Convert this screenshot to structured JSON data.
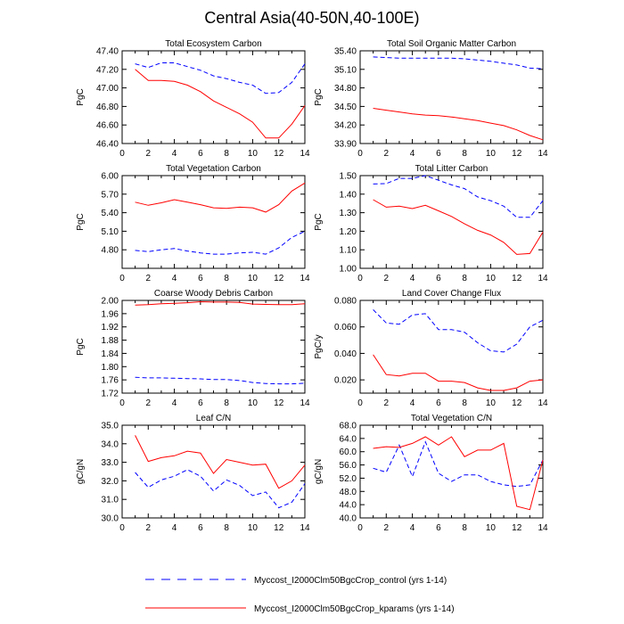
{
  "page_title": "Central Asia(40-50N,40-100E)",
  "colors": {
    "control": "#0000ff",
    "kparams": "#ff0000",
    "axis": "#000000"
  },
  "legend": [
    {
      "label": "Myccost_I2000Clm50BgcCrop_control (yrs 1-14)",
      "color": "#0000ff",
      "dash": "dashed"
    },
    {
      "label": "Myccost_I2000Clm50BgcCrop_kparams (yrs 1-14)",
      "color": "#ff0000",
      "dash": "solid"
    }
  ],
  "chart_data": [
    {
      "type": "line",
      "title": "Total Ecosystem Carbon",
      "ylabel": "PgC",
      "xlim": [
        0,
        14
      ],
      "xticks": [
        "0",
        "2",
        "4",
        "6",
        "8",
        "10",
        "12",
        "14"
      ],
      "ylim": [
        46.4,
        47.4
      ],
      "yticks": [
        "46.40",
        "46.60",
        "46.80",
        "47.00",
        "47.20",
        "47.40"
      ],
      "x": [
        1,
        2,
        3,
        4,
        5,
        6,
        7,
        8,
        9,
        10,
        11,
        12,
        13,
        14
      ],
      "series": [
        {
          "key": "control",
          "values": [
            47.26,
            47.22,
            47.27,
            47.27,
            47.23,
            47.19,
            47.13,
            47.1,
            47.06,
            47.03,
            46.94,
            46.95,
            47.06,
            47.26
          ]
        },
        {
          "key": "kparams",
          "values": [
            47.2,
            47.08,
            47.08,
            47.07,
            47.03,
            46.96,
            46.86,
            46.79,
            46.72,
            46.63,
            46.46,
            46.46,
            46.61,
            46.81
          ]
        }
      ]
    },
    {
      "type": "line",
      "title": "Total Soil Organic Matter Carbon",
      "ylabel": "PgC",
      "xlim": [
        0,
        14
      ],
      "xticks": [
        "0",
        "2",
        "4",
        "6",
        "8",
        "10",
        "12",
        "14"
      ],
      "ylim": [
        33.9,
        35.4
      ],
      "yticks": [
        "33.90",
        "34.20",
        "34.50",
        "34.80",
        "35.10",
        "35.40"
      ],
      "x": [
        1,
        2,
        3,
        4,
        5,
        6,
        7,
        8,
        9,
        10,
        11,
        12,
        13,
        14
      ],
      "series": [
        {
          "key": "control",
          "values": [
            35.3,
            35.29,
            35.28,
            35.28,
            35.28,
            35.28,
            35.28,
            35.27,
            35.25,
            35.23,
            35.2,
            35.17,
            35.12,
            35.11
          ]
        },
        {
          "key": "kparams",
          "values": [
            34.47,
            34.44,
            34.41,
            34.38,
            34.36,
            34.35,
            34.33,
            34.3,
            34.27,
            34.23,
            34.19,
            34.12,
            34.03,
            33.96
          ]
        }
      ]
    },
    {
      "type": "line",
      "title": "Total Vegetation Carbon",
      "ylabel": "PgC",
      "xlim": [
        0,
        14
      ],
      "xticks": [
        "0",
        "2",
        "4",
        "6",
        "8",
        "10",
        "12",
        "14"
      ],
      "ylim": [
        4.5,
        6.0
      ],
      "yticks": [
        "4.80",
        "5.10",
        "5.40",
        "5.70",
        "6.00"
      ],
      "x": [
        1,
        2,
        3,
        4,
        5,
        6,
        7,
        8,
        9,
        10,
        11,
        12,
        13,
        14
      ],
      "series": [
        {
          "key": "control",
          "values": [
            4.79,
            4.77,
            4.8,
            4.82,
            4.78,
            4.75,
            4.73,
            4.73,
            4.75,
            4.76,
            4.73,
            4.83,
            5.0,
            5.1
          ]
        },
        {
          "key": "kparams",
          "values": [
            5.57,
            5.52,
            5.56,
            5.61,
            5.57,
            5.53,
            5.48,
            5.47,
            5.49,
            5.48,
            5.41,
            5.53,
            5.75,
            5.88
          ]
        }
      ]
    },
    {
      "type": "line",
      "title": "Total Litter Carbon",
      "ylabel": "PgC",
      "xlim": [
        0,
        14
      ],
      "xticks": [
        "0",
        "2",
        "4",
        "6",
        "8",
        "10",
        "12",
        "14"
      ],
      "ylim": [
        1.0,
        1.5
      ],
      "yticks": [
        "1.00",
        "1.10",
        "1.20",
        "1.30",
        "1.40",
        "1.50"
      ],
      "x": [
        1,
        2,
        3,
        4,
        5,
        6,
        7,
        8,
        9,
        10,
        11,
        12,
        13,
        14
      ],
      "series": [
        {
          "key": "control",
          "values": [
            1.455,
            1.457,
            1.485,
            1.485,
            1.5,
            1.475,
            1.45,
            1.43,
            1.385,
            1.365,
            1.335,
            1.275,
            1.275,
            1.365
          ]
        },
        {
          "key": "kparams",
          "values": [
            1.37,
            1.33,
            1.335,
            1.322,
            1.34,
            1.31,
            1.28,
            1.24,
            1.205,
            1.18,
            1.14,
            1.075,
            1.08,
            1.195
          ]
        }
      ]
    },
    {
      "type": "line",
      "title": "Coarse Woody Debris Carbon",
      "ylabel": "PgC",
      "xlim": [
        0,
        14
      ],
      "xticks": [
        "0",
        "2",
        "4",
        "6",
        "8",
        "10",
        "12",
        "14"
      ],
      "ylim": [
        1.72,
        2.0
      ],
      "yticks": [
        "1.72",
        "1.76",
        "1.80",
        "1.84",
        "1.88",
        "1.92",
        "1.96",
        "2.00"
      ],
      "x": [
        1,
        2,
        3,
        4,
        5,
        6,
        7,
        8,
        9,
        10,
        11,
        12,
        13,
        14
      ],
      "series": [
        {
          "key": "control",
          "values": [
            1.768,
            1.766,
            1.766,
            1.765,
            1.764,
            1.763,
            1.761,
            1.761,
            1.758,
            1.752,
            1.749,
            1.748,
            1.748,
            1.75
          ]
        },
        {
          "key": "kparams",
          "values": [
            1.986,
            1.987,
            1.99,
            1.991,
            1.993,
            1.996,
            1.995,
            1.995,
            1.994,
            1.989,
            1.988,
            1.987,
            1.987,
            1.99
          ]
        }
      ]
    },
    {
      "type": "line",
      "title": "Land Cover Change Flux",
      "ylabel": "PgC/y",
      "xlim": [
        0,
        14
      ],
      "xticks": [
        "0",
        "2",
        "4",
        "6",
        "8",
        "10",
        "12",
        "14"
      ],
      "ylim": [
        0.01,
        0.08
      ],
      "yticks": [
        "0.020",
        "0.040",
        "0.060",
        "0.080"
      ],
      "x": [
        1,
        2,
        3,
        4,
        5,
        6,
        7,
        8,
        9,
        10,
        11,
        12,
        13,
        14
      ],
      "series": [
        {
          "key": "control",
          "values": [
            0.073,
            0.063,
            0.062,
            0.069,
            0.07,
            0.058,
            0.058,
            0.056,
            0.048,
            0.042,
            0.041,
            0.047,
            0.06,
            0.065
          ]
        },
        {
          "key": "kparams",
          "values": [
            0.039,
            0.024,
            0.023,
            0.025,
            0.025,
            0.019,
            0.019,
            0.018,
            0.014,
            0.012,
            0.012,
            0.014,
            0.019,
            0.02
          ]
        }
      ]
    },
    {
      "type": "line",
      "title": "Leaf C/N",
      "ylabel": "gC/gN",
      "xlim": [
        0,
        14
      ],
      "xticks": [
        "0",
        "2",
        "4",
        "6",
        "8",
        "10",
        "12",
        "14"
      ],
      "ylim": [
        30.0,
        35.0
      ],
      "yticks": [
        "30.0",
        "31.0",
        "32.0",
        "33.0",
        "34.0",
        "35.0"
      ],
      "x": [
        1,
        2,
        3,
        4,
        5,
        6,
        7,
        8,
        9,
        10,
        11,
        12,
        13,
        14
      ],
      "series": [
        {
          "key": "control",
          "values": [
            32.45,
            31.65,
            32.05,
            32.25,
            32.6,
            32.25,
            31.45,
            32.05,
            31.75,
            31.2,
            31.4,
            30.55,
            30.85,
            31.85
          ]
        },
        {
          "key": "kparams",
          "values": [
            34.45,
            33.05,
            33.25,
            33.35,
            33.6,
            33.5,
            32.4,
            33.15,
            33.0,
            32.85,
            32.9,
            31.6,
            32.0,
            32.85
          ]
        }
      ]
    },
    {
      "type": "line",
      "title": "Total Vegetation C/N",
      "ylabel": "gC/gN",
      "xlim": [
        0,
        14
      ],
      "xticks": [
        "0",
        "2",
        "4",
        "6",
        "8",
        "10",
        "12",
        "14"
      ],
      "ylim": [
        40.0,
        68.0
      ],
      "yticks": [
        "40.0",
        "44.0",
        "48.0",
        "52.0",
        "56.0",
        "60.0",
        "64.0",
        "68.0"
      ],
      "x": [
        1,
        2,
        3,
        4,
        5,
        6,
        7,
        8,
        9,
        10,
        11,
        12,
        13,
        14
      ],
      "series": [
        {
          "key": "control",
          "values": [
            55.0,
            53.8,
            62.0,
            52.5,
            63.0,
            53.5,
            51.0,
            53.0,
            53.0,
            51.0,
            50.0,
            49.5,
            50.0,
            57.5
          ]
        },
        {
          "key": "kparams",
          "values": [
            61.0,
            61.5,
            61.3,
            62.5,
            64.5,
            62.0,
            64.5,
            58.5,
            60.5,
            60.5,
            62.5,
            43.5,
            42.5,
            57.5
          ]
        }
      ]
    }
  ]
}
